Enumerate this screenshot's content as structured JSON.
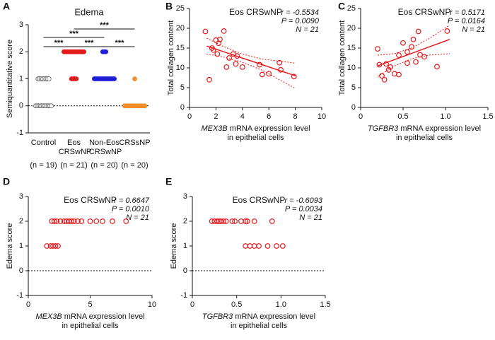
{
  "chart_data": [
    {
      "type": "dotplot",
      "panel": "A",
      "title": "Edema",
      "ylabel": "Semiquantitative score",
      "categories": [
        "Control",
        "Eos CRSwNP",
        "Non-Eos CRSwNP",
        "CRSsNP"
      ],
      "n_labels": [
        "(n = 19)",
        "(n = 21)",
        "(n = 20)",
        "(n = 20)"
      ],
      "groups": [
        {
          "color": "#7f7f7f",
          "marker": "open-circle",
          "values": [
            1,
            1,
            1,
            1,
            1,
            1,
            1,
            1,
            0,
            0,
            0,
            0,
            0,
            0,
            0,
            0,
            0,
            0,
            0
          ]
        },
        {
          "color": "#e31a1c",
          "marker": "filled-circle",
          "values": [
            2,
            2,
            2,
            2,
            2,
            2,
            2,
            2,
            2,
            2,
            2,
            2,
            2,
            2,
            2,
            2,
            2,
            1,
            1,
            1,
            1
          ]
        },
        {
          "color": "#1f1fd6",
          "marker": "filled-circle",
          "values": [
            2,
            2,
            2,
            1,
            1,
            1,
            1,
            1,
            1,
            1,
            1,
            1,
            1,
            1,
            1,
            1,
            1,
            1,
            1,
            1
          ]
        },
        {
          "color": "#f28e2b",
          "marker": "filled-circle",
          "values": [
            1,
            0,
            0,
            0,
            0,
            0,
            0,
            0,
            0,
            0,
            0,
            0,
            0,
            0,
            0,
            0,
            0,
            0,
            0,
            0
          ]
        }
      ],
      "significance": [
        {
          "groups": [
            "Eos CRSwNP",
            "CRSsNP"
          ],
          "label": "***"
        },
        {
          "groups": [
            "Control",
            "Non-Eos CRSwNP"
          ],
          "label": "***"
        },
        {
          "groups": [
            "Control",
            "Eos CRSwNP"
          ],
          "label": "***"
        },
        {
          "groups": [
            "Eos CRSwNP",
            "Non-Eos CRSwNP"
          ],
          "label": "***"
        },
        {
          "groups": [
            "Non-Eos CRSwNP",
            "CRSsNP"
          ],
          "label": "***"
        }
      ],
      "ylim": [
        -1,
        3
      ],
      "yticks": [
        -1,
        0,
        1,
        2,
        3
      ],
      "ref_line": 0
    },
    {
      "type": "scatter",
      "panel": "B",
      "title": "Eos CRSwNP",
      "ylabel": "Total collagen content",
      "xlabel": [
        "MEX3B mRNA expression level",
        "in epithelial cells"
      ],
      "stats": [
        "r = -0.5534",
        "P = 0.0090",
        "N = 21"
      ],
      "color": "#e31a1c",
      "x": [
        1.2,
        1.5,
        1.7,
        1.8,
        2.0,
        2.1,
        2.2,
        2.3,
        2.6,
        2.8,
        3.0,
        3.3,
        3.5,
        3.6,
        4.0,
        5.3,
        5.5,
        6.0,
        6.8,
        6.9,
        7.9
      ],
      "y": [
        19.2,
        7,
        15,
        14.5,
        17,
        13.5,
        16.2,
        17.2,
        19.3,
        10.2,
        12.5,
        13.5,
        11,
        13,
        10.2,
        10.8,
        8.3,
        8.5,
        11.3,
        9.5,
        7.8
      ],
      "fit": {
        "x": [
          1.3,
          2.5,
          4,
          5.5,
          8
        ],
        "y": [
          15.5,
          14.16,
          12.48,
          10.8,
          8.0
        ],
        "ci_upper": [
          17.5,
          15.5,
          13.5,
          12.2,
          11.2
        ],
        "ci_lower": [
          13.5,
          12.8,
          11.4,
          9.4,
          4.8
        ]
      },
      "xlim": [
        0,
        10
      ],
      "xticks": [
        0,
        2,
        4,
        6,
        8,
        10
      ],
      "ylim": [
        0,
        25
      ],
      "yticks": [
        0,
        5,
        10,
        15,
        20,
        25
      ]
    },
    {
      "type": "scatter",
      "panel": "C",
      "title": "Eos CRSwNP",
      "ylabel": "Total collagen content",
      "xlabel": [
        "TGFBR3 mRNA expression level",
        "in epithelial cells"
      ],
      "stats": [
        "r = 0.5171",
        "P = 0.0164",
        "N = 21"
      ],
      "color": "#e31a1c",
      "x": [
        0.2,
        0.22,
        0.25,
        0.28,
        0.3,
        0.33,
        0.35,
        0.4,
        0.45,
        0.45,
        0.5,
        0.55,
        0.55,
        0.6,
        0.62,
        0.65,
        0.68,
        0.7,
        0.75,
        0.9,
        1.02
      ],
      "y": [
        14.8,
        10.8,
        8,
        7,
        11,
        9.5,
        10.2,
        8.5,
        8.3,
        13.2,
        16.3,
        11.2,
        14,
        15.3,
        17.2,
        11.5,
        19.2,
        13.3,
        12.8,
        10.3,
        19.3
      ],
      "fit": {
        "x": [
          0.2,
          0.4,
          0.6,
          0.8,
          1.05
        ],
        "y": [
          10.5,
          12.08,
          13.65,
          15.23,
          17.2
        ],
        "ci_upper": [
          13.2,
          13.6,
          15.0,
          17.3,
          20.8
        ],
        "ci_lower": [
          7.8,
          10.5,
          12.3,
          13.2,
          13.6
        ]
      },
      "xlim": [
        0,
        1.5
      ],
      "xticks": [
        0,
        0.5,
        {
          "value": 1,
          "label": "1.0"
        },
        1.5
      ],
      "ylim": [
        0,
        25
      ],
      "yticks": [
        0,
        5,
        10,
        15,
        20,
        25
      ]
    },
    {
      "type": "scatter",
      "panel": "D",
      "title": "Eos CRSwNP",
      "ylabel": "Edema score",
      "xlabel": [
        "MEX3B mRNA expression level",
        "in epithelial cells"
      ],
      "stats": [
        "r = 0.6647",
        "P = 0.0010",
        "N = 21"
      ],
      "color": "#e31a1c",
      "x": [
        1.5,
        1.8,
        2.0,
        2.2,
        2.4,
        1.9,
        2.1,
        2.3,
        2.6,
        2.9,
        3.1,
        3.3,
        3.5,
        3.7,
        4.0,
        4.3,
        5.0,
        5.5,
        6.0,
        6.8,
        7.9
      ],
      "y": [
        1,
        1,
        1,
        1,
        1,
        2,
        2,
        2,
        2,
        2,
        2,
        2,
        2,
        2,
        2,
        2,
        2,
        2,
        2,
        2,
        2
      ],
      "xlim": [
        0,
        10
      ],
      "xticks": [
        0,
        5,
        10
      ],
      "ylim": [
        -1,
        3
      ],
      "yticks": [
        -1,
        0,
        1,
        2,
        3
      ],
      "ref_line": 0
    },
    {
      "type": "scatter",
      "panel": "E",
      "title": "Eos CRSwNP",
      "ylabel": "Edema score",
      "xlabel": [
        "TGFBR3 mRNA expression level",
        "in epithelial cells"
      ],
      "stats": [
        "r = -0.6093",
        "P = 0.0034",
        "N = 21"
      ],
      "color": "#e31a1c",
      "x": [
        0.22,
        0.25,
        0.28,
        0.3,
        0.32,
        0.35,
        0.38,
        0.45,
        0.48,
        0.55,
        0.6,
        0.62,
        0.7,
        0.9,
        0.6,
        0.65,
        0.7,
        0.75,
        0.85,
        0.95,
        1.02
      ],
      "y": [
        2,
        2,
        2,
        2,
        2,
        2,
        2,
        2,
        2,
        2,
        2,
        2,
        2,
        2,
        1,
        1,
        1,
        1,
        1,
        1,
        1
      ],
      "xlim": [
        0,
        1.5
      ],
      "xticks": [
        0,
        0.5,
        {
          "value": 1,
          "label": "1.0"
        },
        1.5
      ],
      "ylim": [
        -1,
        3
      ],
      "yticks": [
        -1,
        0,
        1,
        2,
        3
      ],
      "ref_line": 0
    }
  ]
}
